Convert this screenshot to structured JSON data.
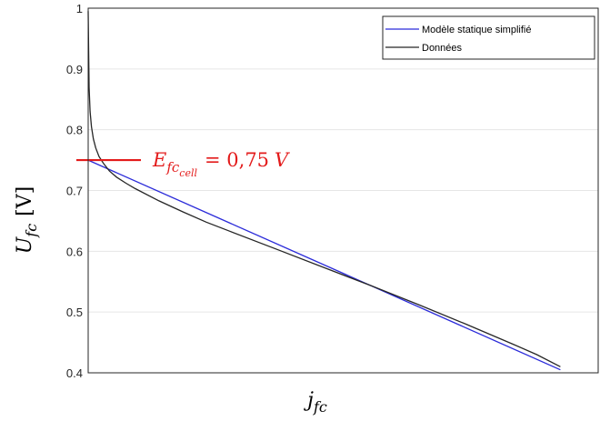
{
  "chart_data": {
    "type": "line",
    "ylim": [
      0.4,
      1.0
    ],
    "yticks": [
      "0.4",
      "0.5",
      "0.6",
      "0.7",
      "0.8",
      "0.9",
      "1"
    ],
    "grid": true,
    "legend_position": "top-right",
    "series": [
      {
        "name": "Modèle statique simplifié",
        "color": "#2b2bd9",
        "x": [
          0,
          1
        ],
        "y": [
          0.75,
          0.405
        ]
      },
      {
        "name": "Données",
        "color": "#262626",
        "x": [
          0.0,
          0.001,
          0.002,
          0.004,
          0.007,
          0.011,
          0.016,
          0.023,
          0.032,
          0.045,
          0.06,
          0.08,
          0.1,
          0.15,
          0.2,
          0.25,
          0.3,
          0.4,
          0.5,
          0.6,
          0.7,
          0.8,
          0.9,
          0.95,
          1.0
        ],
        "y": [
          0.995,
          0.93,
          0.87,
          0.83,
          0.805,
          0.785,
          0.77,
          0.756,
          0.745,
          0.732,
          0.722,
          0.712,
          0.703,
          0.683,
          0.665,
          0.648,
          0.633,
          0.603,
          0.573,
          0.543,
          0.512,
          0.48,
          0.447,
          0.43,
          0.41
        ]
      }
    ],
    "xlabel": {
      "base": "j",
      "sub": "fc"
    },
    "ylabel": {
      "base": "U",
      "sub": "fc",
      "unit": "[V]"
    },
    "annotation": {
      "base": "E",
      "sub": "fc",
      "subsub": "cell",
      "eq": "= 0,75",
      "unit": "V",
      "value": 0.75,
      "color": "#e31b1b"
    }
  }
}
